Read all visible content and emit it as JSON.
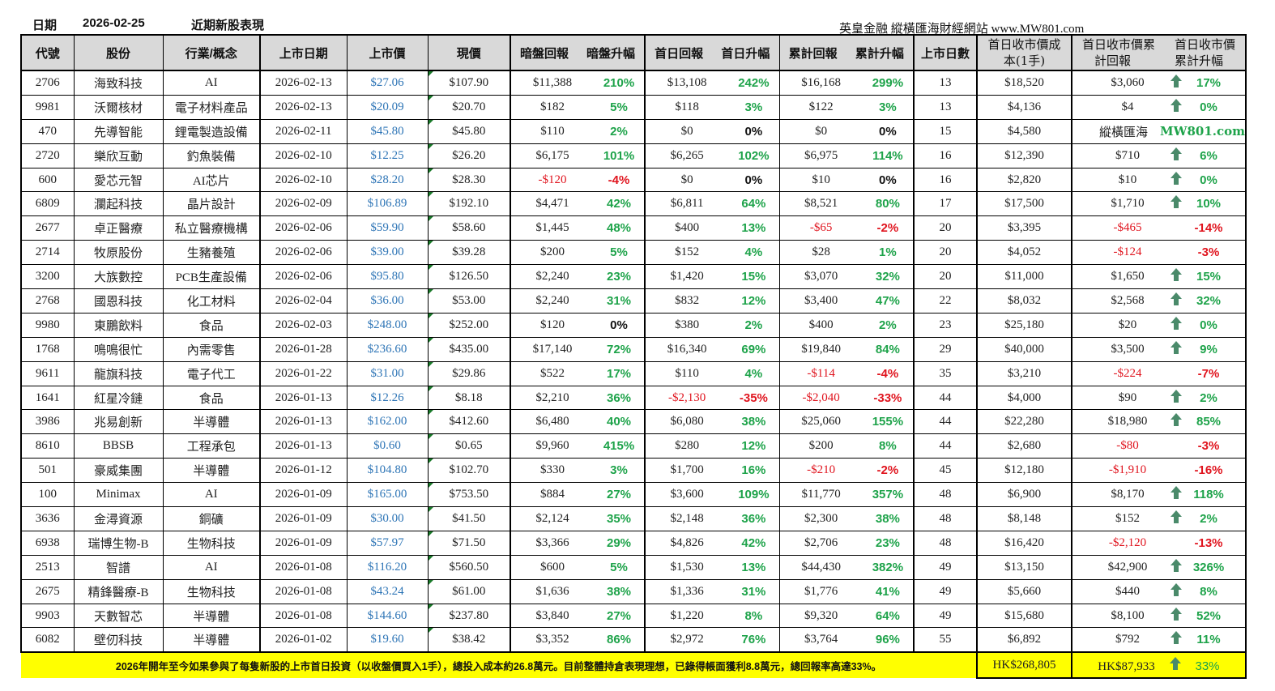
{
  "header": {
    "date_label": "日期",
    "date": "2026-02-25",
    "title": "近期新股表現",
    "source": "英皇金融 縱橫匯海財經網站 www.MW801.com"
  },
  "columns": {
    "code": "代號",
    "name": "股份",
    "sector": "行業/概念",
    "list_date": "上市日期",
    "list_price": "上市價",
    "current_price": "現價",
    "grey_return": "暗盤回報",
    "grey_pct": "暗盤升幅",
    "day1_return": "首日回報",
    "day1_pct": "首日升幅",
    "cum_return": "累計回報",
    "cum_pct": "累計升幅",
    "days_listed": "上市日數",
    "close_cost_l1": "首日收市價成",
    "close_cost_l2": "本(1手)",
    "close_ret_l1": "首日收市價累",
    "close_ret_l2": "計回報",
    "close_pct_l1": "首日收市價",
    "close_pct_l2": "累計升幅"
  },
  "rows": [
    {
      "code": "2706",
      "name": "海致科技",
      "sector": "AI",
      "list_date": "2026-02-13",
      "list_price": "$27.06",
      "current": "$107.90",
      "grey_ret": "$11,388",
      "grey_pct": "210%",
      "d1_ret": "$13,108",
      "d1_pct": "242%",
      "cum_ret": "$16,168",
      "cum_pct": "299%",
      "days": "13",
      "cost": "$18,520",
      "c_ret": "$3,060",
      "c_pct": "17%",
      "arrow": "up"
    },
    {
      "code": "9981",
      "name": "沃爾核材",
      "sector": "電子材料產品",
      "list_date": "2026-02-13",
      "list_price": "$20.09",
      "current": "$20.70",
      "grey_ret": "$182",
      "grey_pct": "5%",
      "d1_ret": "$118",
      "d1_pct": "3%",
      "cum_ret": "$122",
      "cum_pct": "3%",
      "days": "13",
      "cost": "$4,136",
      "c_ret": "$4",
      "c_pct": "0%",
      "arrow": "up"
    },
    {
      "code": "470",
      "name": "先導智能",
      "sector": "鋰電製造設備",
      "list_date": "2026-02-11",
      "list_price": "$45.80",
      "current": "$45.80",
      "grey_ret": "$110",
      "grey_pct": "2%",
      "d1_ret": "$0",
      "d1_pct": "0%",
      "cum_ret": "$0",
      "cum_pct": "0%",
      "days": "15",
      "cost": "$4,580",
      "c_ret": "縱橫匯海",
      "c_pct": "MW801.com",
      "arrow": "watermark"
    },
    {
      "code": "2720",
      "name": "樂欣互動",
      "sector": "釣魚裝備",
      "list_date": "2026-02-10",
      "list_price": "$12.25",
      "current": "$26.20",
      "grey_ret": "$6,175",
      "grey_pct": "101%",
      "d1_ret": "$6,265",
      "d1_pct": "102%",
      "cum_ret": "$6,975",
      "cum_pct": "114%",
      "days": "16",
      "cost": "$12,390",
      "c_ret": "$710",
      "c_pct": "6%",
      "arrow": "up"
    },
    {
      "code": "600",
      "name": "愛芯元智",
      "sector": "AI芯片",
      "list_date": "2026-02-10",
      "list_price": "$28.20",
      "current": "$28.30",
      "grey_ret": "-$120",
      "grey_pct": "-4%",
      "d1_ret": "$0",
      "d1_pct": "0%",
      "cum_ret": "$10",
      "cum_pct": "0%",
      "days": "16",
      "cost": "$2,820",
      "c_ret": "$10",
      "c_pct": "0%",
      "arrow": "up"
    },
    {
      "code": "6809",
      "name": "瀾起科技",
      "sector": "晶片設計",
      "list_date": "2026-02-09",
      "list_price": "$106.89",
      "current": "$192.10",
      "grey_ret": "$4,471",
      "grey_pct": "42%",
      "d1_ret": "$6,811",
      "d1_pct": "64%",
      "cum_ret": "$8,521",
      "cum_pct": "80%",
      "days": "17",
      "cost": "$17,500",
      "c_ret": "$1,710",
      "c_pct": "10%",
      "arrow": "up"
    },
    {
      "code": "2677",
      "name": "卓正醫療",
      "sector": "私立醫療機構",
      "list_date": "2026-02-06",
      "list_price": "$59.90",
      "current": "$58.60",
      "grey_ret": "$1,445",
      "grey_pct": "48%",
      "d1_ret": "$400",
      "d1_pct": "13%",
      "cum_ret": "-$65",
      "cum_pct": "-2%",
      "days": "20",
      "cost": "$3,395",
      "c_ret": "-$465",
      "c_pct": "-14%",
      "arrow": "none"
    },
    {
      "code": "2714",
      "name": "牧原股份",
      "sector": "生豬養殖",
      "list_date": "2026-02-06",
      "list_price": "$39.00",
      "current": "$39.28",
      "grey_ret": "$200",
      "grey_pct": "5%",
      "d1_ret": "$152",
      "d1_pct": "4%",
      "cum_ret": "$28",
      "cum_pct": "1%",
      "days": "20",
      "cost": "$4,052",
      "c_ret": "-$124",
      "c_pct": "-3%",
      "arrow": "none"
    },
    {
      "code": "3200",
      "name": "大族數控",
      "sector": "PCB生產設備",
      "list_date": "2026-02-06",
      "list_price": "$95.80",
      "current": "$126.50",
      "grey_ret": "$2,240",
      "grey_pct": "23%",
      "d1_ret": "$1,420",
      "d1_pct": "15%",
      "cum_ret": "$3,070",
      "cum_pct": "32%",
      "days": "20",
      "cost": "$11,000",
      "c_ret": "$1,650",
      "c_pct": "15%",
      "arrow": "up"
    },
    {
      "code": "2768",
      "name": "國恩科技",
      "sector": "化工材料",
      "list_date": "2026-02-04",
      "list_price": "$36.00",
      "current": "$53.00",
      "grey_ret": "$2,240",
      "grey_pct": "31%",
      "d1_ret": "$832",
      "d1_pct": "12%",
      "cum_ret": "$3,400",
      "cum_pct": "47%",
      "days": "22",
      "cost": "$8,032",
      "c_ret": "$2,568",
      "c_pct": "32%",
      "arrow": "up"
    },
    {
      "code": "9980",
      "name": "東鵬飲料",
      "sector": "食品",
      "list_date": "2026-02-03",
      "list_price": "$248.00",
      "current": "$252.00",
      "grey_ret": "$120",
      "grey_pct": "0%",
      "d1_ret": "$380",
      "d1_pct": "2%",
      "cum_ret": "$400",
      "cum_pct": "2%",
      "days": "23",
      "cost": "$25,180",
      "c_ret": "$20",
      "c_pct": "0%",
      "arrow": "up"
    },
    {
      "code": "1768",
      "name": "鳴鳴很忙",
      "sector": "內需零售",
      "list_date": "2026-01-28",
      "list_price": "$236.60",
      "current": "$435.00",
      "grey_ret": "$17,140",
      "grey_pct": "72%",
      "d1_ret": "$16,340",
      "d1_pct": "69%",
      "cum_ret": "$19,840",
      "cum_pct": "84%",
      "days": "29",
      "cost": "$40,000",
      "c_ret": "$3,500",
      "c_pct": "9%",
      "arrow": "up"
    },
    {
      "code": "9611",
      "name": "龍旗科技",
      "sector": "電子代工",
      "list_date": "2026-01-22",
      "list_price": "$31.00",
      "current": "$29.86",
      "grey_ret": "$522",
      "grey_pct": "17%",
      "d1_ret": "$110",
      "d1_pct": "4%",
      "cum_ret": "-$114",
      "cum_pct": "-4%",
      "days": "35",
      "cost": "$3,210",
      "c_ret": "-$224",
      "c_pct": "-7%",
      "arrow": "none"
    },
    {
      "code": "1641",
      "name": "紅星冷鏈",
      "sector": "食品",
      "list_date": "2026-01-13",
      "list_price": "$12.26",
      "current": "$8.18",
      "grey_ret": "$2,210",
      "grey_pct": "36%",
      "d1_ret": "-$2,130",
      "d1_pct": "-35%",
      "cum_ret": "-$2,040",
      "cum_pct": "-33%",
      "days": "44",
      "cost": "$4,000",
      "c_ret": "$90",
      "c_pct": "2%",
      "arrow": "up"
    },
    {
      "code": "3986",
      "name": "兆易創新",
      "sector": "半導體",
      "list_date": "2026-01-13",
      "list_price": "$162.00",
      "current": "$412.60",
      "grey_ret": "$6,480",
      "grey_pct": "40%",
      "d1_ret": "$6,080",
      "d1_pct": "38%",
      "cum_ret": "$25,060",
      "cum_pct": "155%",
      "days": "44",
      "cost": "$22,280",
      "c_ret": "$18,980",
      "c_pct": "85%",
      "arrow": "up"
    },
    {
      "code": "8610",
      "name": "BBSB",
      "sector": "工程承包",
      "list_date": "2026-01-13",
      "list_price": "$0.60",
      "current": "$0.65",
      "grey_ret": "$9,960",
      "grey_pct": "415%",
      "d1_ret": "$280",
      "d1_pct": "12%",
      "cum_ret": "$200",
      "cum_pct": "8%",
      "days": "44",
      "cost": "$2,680",
      "c_ret": "-$80",
      "c_pct": "-3%",
      "arrow": "none"
    },
    {
      "code": "501",
      "name": "豪威集團",
      "sector": "半導體",
      "list_date": "2026-01-12",
      "list_price": "$104.80",
      "current": "$102.70",
      "grey_ret": "$330",
      "grey_pct": "3%",
      "d1_ret": "$1,700",
      "d1_pct": "16%",
      "cum_ret": "-$210",
      "cum_pct": "-2%",
      "days": "45",
      "cost": "$12,180",
      "c_ret": "-$1,910",
      "c_pct": "-16%",
      "arrow": "none"
    },
    {
      "code": "100",
      "name": "Minimax",
      "sector": "AI",
      "list_date": "2026-01-09",
      "list_price": "$165.00",
      "current": "$753.50",
      "grey_ret": "$884",
      "grey_pct": "27%",
      "d1_ret": "$3,600",
      "d1_pct": "109%",
      "cum_ret": "$11,770",
      "cum_pct": "357%",
      "days": "48",
      "cost": "$6,900",
      "c_ret": "$8,170",
      "c_pct": "118%",
      "arrow": "up"
    },
    {
      "code": "3636",
      "name": "金潯資源",
      "sector": "銅礦",
      "list_date": "2026-01-09",
      "list_price": "$30.00",
      "current": "$41.50",
      "grey_ret": "$2,124",
      "grey_pct": "35%",
      "d1_ret": "$2,148",
      "d1_pct": "36%",
      "cum_ret": "$2,300",
      "cum_pct": "38%",
      "days": "48",
      "cost": "$8,148",
      "c_ret": "$152",
      "c_pct": "2%",
      "arrow": "up"
    },
    {
      "code": "6938",
      "name": "瑞博生物-B",
      "sector": "生物科技",
      "list_date": "2026-01-09",
      "list_price": "$57.97",
      "current": "$71.50",
      "grey_ret": "$3,366",
      "grey_pct": "29%",
      "d1_ret": "$4,826",
      "d1_pct": "42%",
      "cum_ret": "$2,706",
      "cum_pct": "23%",
      "days": "48",
      "cost": "$16,420",
      "c_ret": "-$2,120",
      "c_pct": "-13%",
      "arrow": "none"
    },
    {
      "code": "2513",
      "name": "智譜",
      "sector": "AI",
      "list_date": "2026-01-08",
      "list_price": "$116.20",
      "current": "$560.50",
      "grey_ret": "$600",
      "grey_pct": "5%",
      "d1_ret": "$1,530",
      "d1_pct": "13%",
      "cum_ret": "$44,430",
      "cum_pct": "382%",
      "days": "49",
      "cost": "$13,150",
      "c_ret": "$42,900",
      "c_pct": "326%",
      "arrow": "up"
    },
    {
      "code": "2675",
      "name": "精鋒醫療-B",
      "sector": "生物科技",
      "list_date": "2026-01-08",
      "list_price": "$43.24",
      "current": "$61.00",
      "grey_ret": "$1,636",
      "grey_pct": "38%",
      "d1_ret": "$1,336",
      "d1_pct": "31%",
      "cum_ret": "$1,776",
      "cum_pct": "41%",
      "days": "49",
      "cost": "$5,660",
      "c_ret": "$440",
      "c_pct": "8%",
      "arrow": "up"
    },
    {
      "code": "9903",
      "name": "天數智芯",
      "sector": "半導體",
      "list_date": "2026-01-08",
      "list_price": "$144.60",
      "current": "$237.80",
      "grey_ret": "$3,840",
      "grey_pct": "27%",
      "d1_ret": "$1,220",
      "d1_pct": "8%",
      "cum_ret": "$9,320",
      "cum_pct": "64%",
      "days": "49",
      "cost": "$15,680",
      "c_ret": "$8,100",
      "c_pct": "52%",
      "arrow": "up"
    },
    {
      "code": "6082",
      "name": "壁仞科技",
      "sector": "半導體",
      "list_date": "2026-01-02",
      "list_price": "$19.60",
      "current": "$38.42",
      "grey_ret": "$3,352",
      "grey_pct": "86%",
      "d1_ret": "$2,972",
      "d1_pct": "76%",
      "cum_ret": "$3,764",
      "cum_pct": "96%",
      "days": "55",
      "cost": "$6,892",
      "c_ret": "$792",
      "c_pct": "11%",
      "arrow": "up"
    }
  ],
  "footer": {
    "note": "2026年開年至今如果參與了每隻新股的上市首日投資（以收盤價買入1手），總投入成本約26.8萬元。目前整體持倉表現理想，已錄得帳面獲利8.8萬元，總回報率高達33%。",
    "total_cost": "HK$268,805",
    "total_return": "HK$87,933",
    "total_pct": "33%"
  },
  "colors": {
    "header_bg": "#d9d9d9",
    "positive": "#1ea34a",
    "negative": "#e0141e",
    "list_price": "#2e75b6",
    "arrow": "#4a8a6a",
    "footer_bg": "#ffff00"
  }
}
